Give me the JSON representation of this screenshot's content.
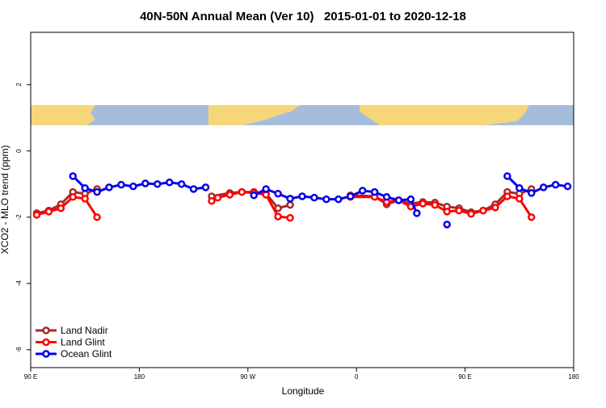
{
  "chart_data": {
    "type": "line",
    "title": "40N-50N Annual Mean (Ver 10)   2015-01-01 to 2020-12-18",
    "x_label": "Longitude",
    "y_label": "XCO2 - MLO trend (ppm)",
    "xlim": [
      90,
      540
    ],
    "ylim": [
      -6.54,
      3.58
    ],
    "xticks": [
      {
        "value": 90,
        "label": "90 E"
      },
      180,
      {
        "value": 270,
        "label": "90 W"
      },
      {
        "value": 360,
        "label": "0"
      },
      {
        "value": 450,
        "label": "90 E"
      },
      {
        "value": 540,
        "label": "180"
      }
    ],
    "yticks": [
      -6,
      -4,
      -2,
      0,
      2
    ],
    "legend": "bottomleft",
    "series": [
      {
        "name": "Land Nadir",
        "color": "#a52a2a",
        "x": [
          95,
          105,
          115,
          125,
          135,
          145,
          190,
          240,
          255,
          265,
          275,
          285,
          295,
          305,
          330,
          355,
          375,
          385,
          395,
          405,
          415,
          425,
          435,
          445,
          455,
          465,
          475,
          485,
          495,
          505
        ],
        "values": [
          -1.88,
          -1.8,
          -1.61,
          -1.24,
          -1.29,
          -1.15,
          null,
          -1.37,
          -1.27,
          -1.24,
          -1.24,
          -1.29,
          -1.73,
          -1.63,
          null,
          -1.34,
          -1.37,
          -1.61,
          -1.49,
          -1.59,
          -1.54,
          -1.56,
          -1.68,
          -1.73,
          -1.85,
          -1.8,
          -1.61,
          -1.24,
          -1.29,
          -1.15
        ]
      },
      {
        "name": "Land Glint",
        "color": "#ff0000",
        "x": [
          95,
          105,
          115,
          125,
          135,
          145,
          190,
          240,
          245,
          255,
          265,
          275,
          285,
          295,
          305,
          330,
          355,
          375,
          385,
          395,
          405,
          415,
          425,
          435,
          445,
          455,
          465,
          475,
          485,
          495,
          505
        ],
        "values": [
          -1.93,
          -1.83,
          -1.73,
          -1.39,
          -1.44,
          -2.0,
          null,
          -1.51,
          -1.41,
          -1.32,
          -1.24,
          -1.27,
          -1.32,
          -1.98,
          -2.02,
          null,
          -1.39,
          -1.39,
          -1.54,
          -1.49,
          -1.68,
          -1.59,
          -1.63,
          -1.83,
          -1.8,
          -1.9,
          -1.8,
          -1.71,
          -1.37,
          -1.44,
          -2.0
        ]
      },
      {
        "name": "Ocean Glint",
        "color": "#0000ee",
        "x": [
          125,
          135,
          145,
          155,
          165,
          175,
          185,
          195,
          205,
          215,
          225,
          235,
          255,
          275,
          285,
          295,
          305,
          315,
          325,
          335,
          345,
          355,
          365,
          375,
          385,
          395,
          405,
          410,
          425,
          435,
          460,
          485,
          495,
          505,
          515,
          525,
          535
        ],
        "values": [
          -0.76,
          -1.12,
          -1.24,
          -1.1,
          -1.02,
          -1.07,
          -0.98,
          -1.0,
          -0.95,
          -1.0,
          -1.15,
          -1.1,
          null,
          -1.34,
          -1.15,
          -1.29,
          -1.44,
          -1.37,
          -1.41,
          -1.46,
          -1.46,
          -1.37,
          -1.2,
          -1.24,
          -1.39,
          -1.49,
          -1.46,
          -1.88,
          null,
          -2.22,
          null,
          -0.76,
          -1.12,
          -1.27,
          -1.1,
          -1.02,
          -1.07
        ]
      }
    ]
  }
}
